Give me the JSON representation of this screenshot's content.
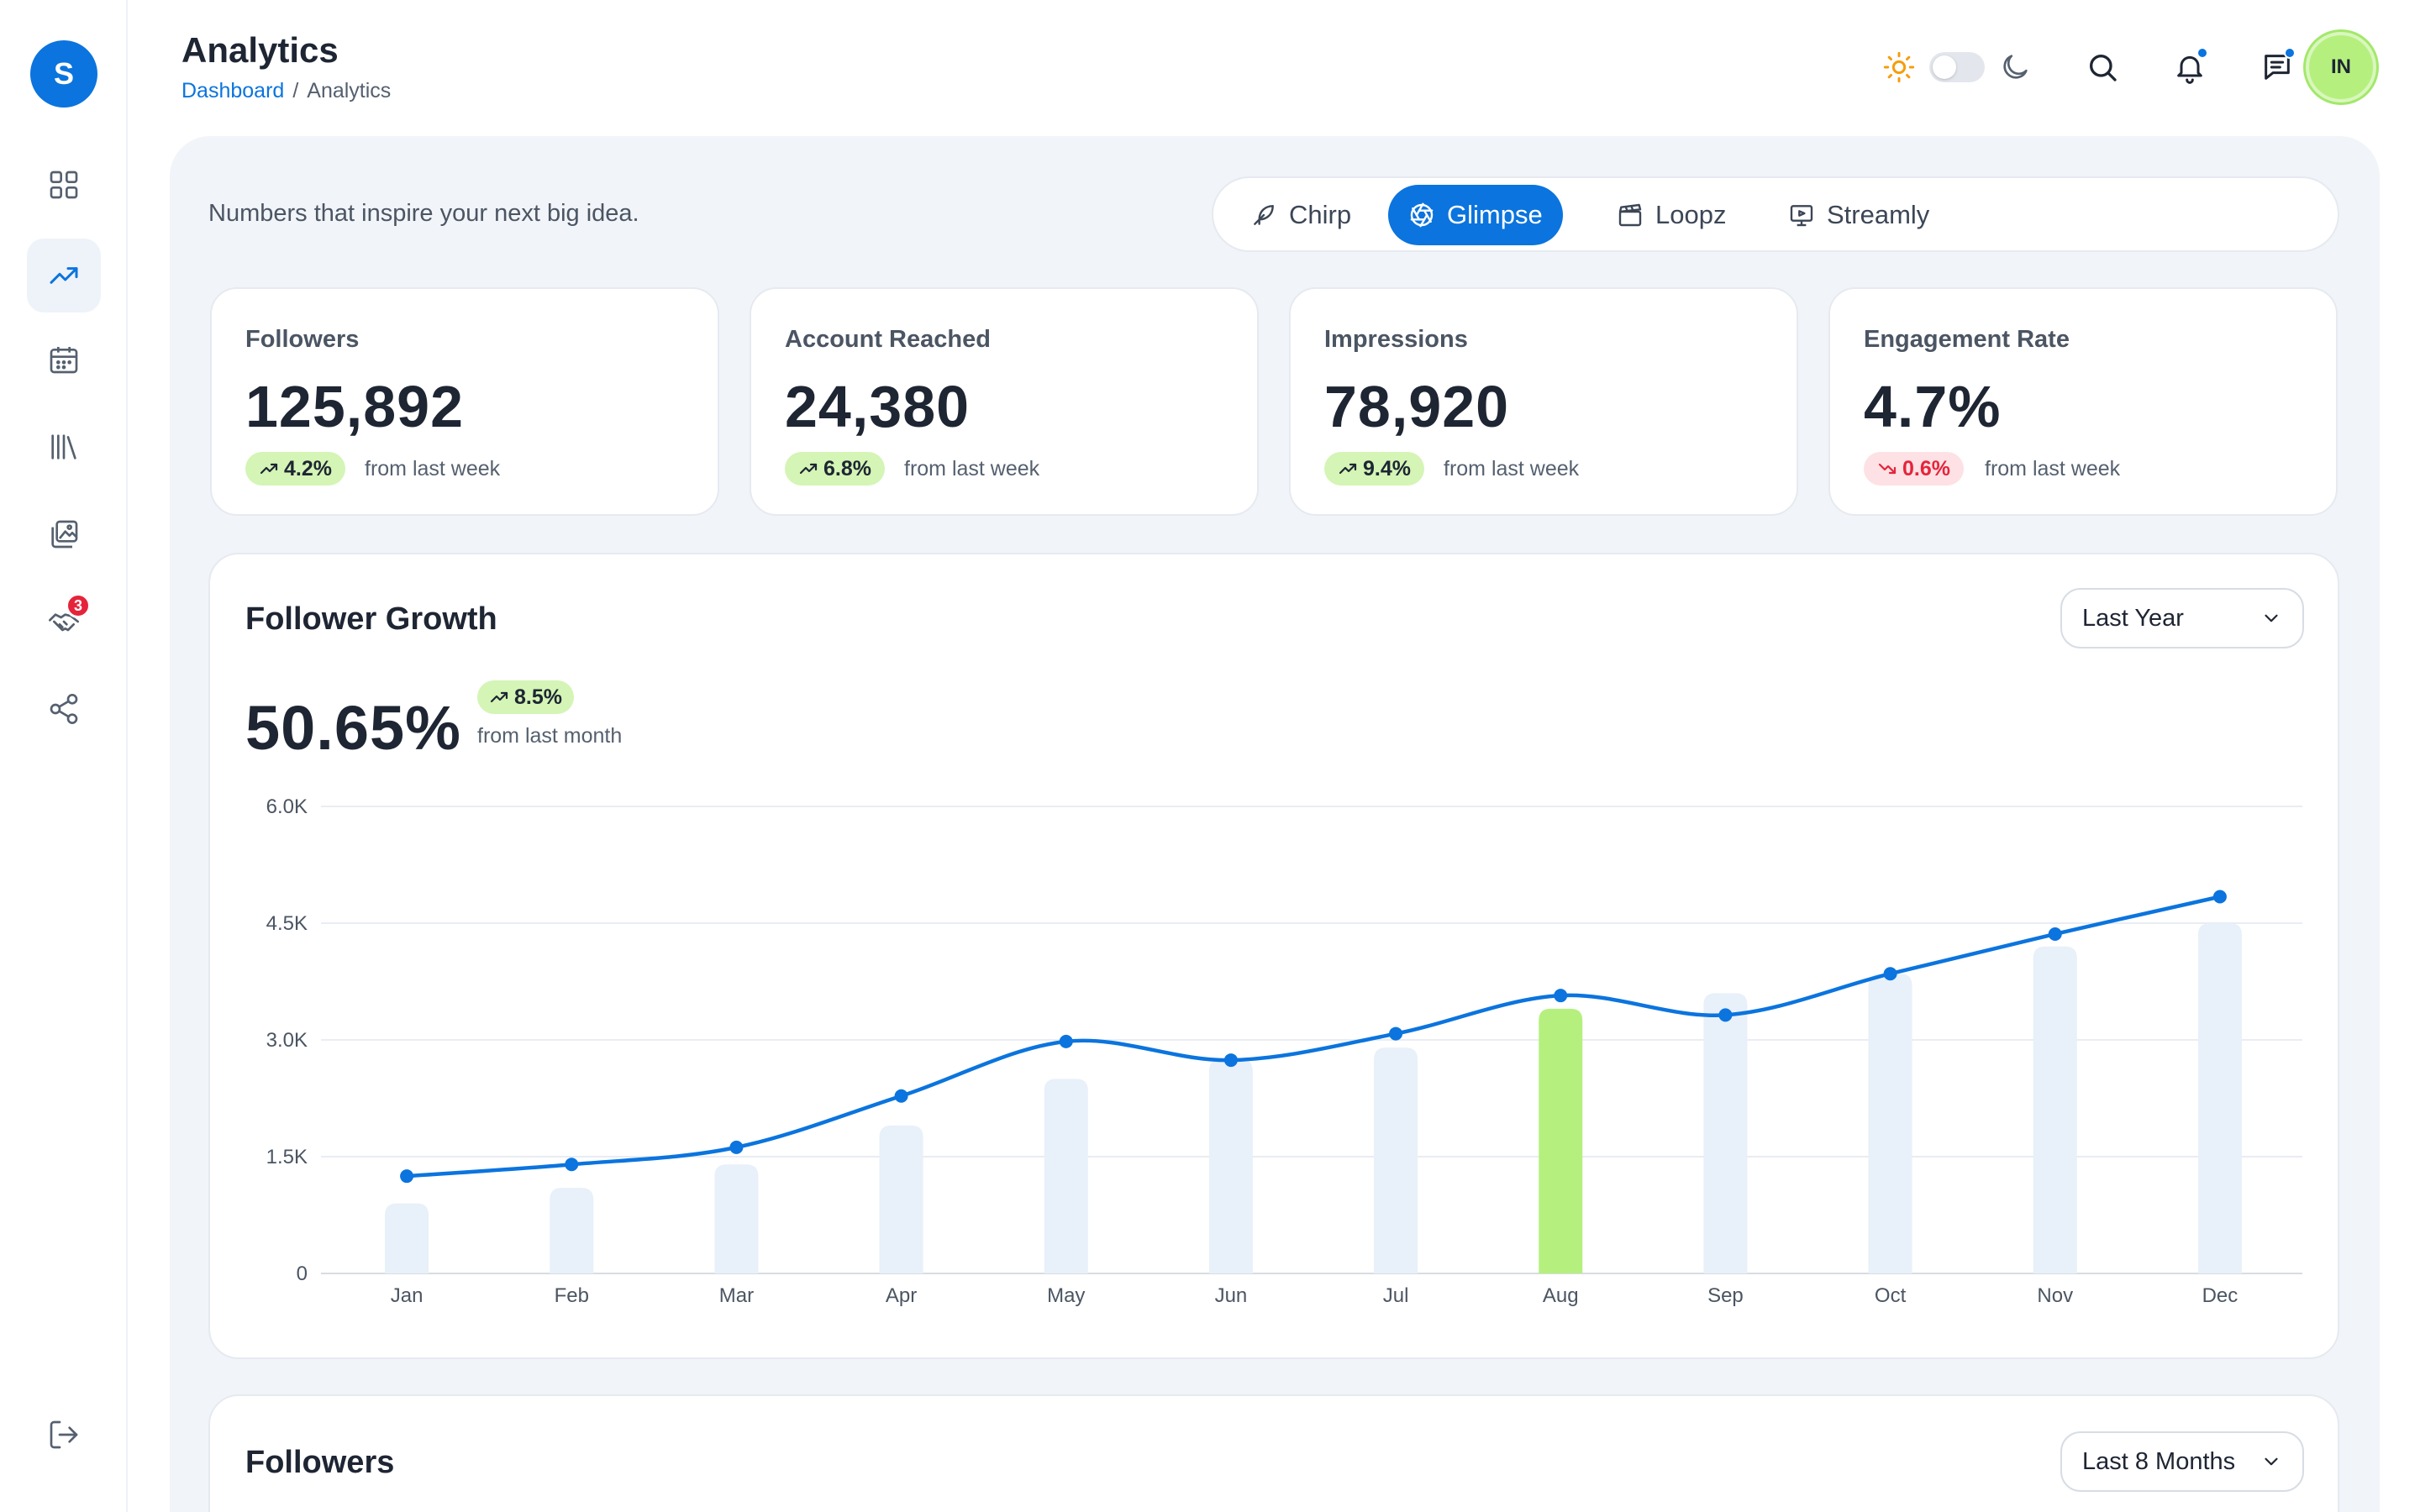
{
  "app": {
    "logo_letter": "S"
  },
  "header": {
    "title": "Analytics",
    "breadcrumb": {
      "link": "Dashboard",
      "separator": "/",
      "current": "Analytics"
    },
    "avatar_initials": "IN"
  },
  "sidebar": {
    "items": [
      {
        "icon": "grid-icon",
        "active": false
      },
      {
        "icon": "trending-up-icon",
        "active": true
      },
      {
        "icon": "calendar-icon",
        "active": false
      },
      {
        "icon": "library-icon",
        "active": false
      },
      {
        "icon": "gallery-icon",
        "active": false
      },
      {
        "icon": "handshake-icon",
        "active": false,
        "badge": "3"
      },
      {
        "icon": "share-icon",
        "active": false
      }
    ],
    "logout_icon": "logout-icon"
  },
  "main": {
    "tagline": "Numbers that inspire your next big idea.",
    "tabs": [
      {
        "label": "Chirp",
        "icon": "feather-icon",
        "active": false
      },
      {
        "label": "Glimpse",
        "icon": "aperture-icon",
        "active": true
      },
      {
        "label": "Loopz",
        "icon": "clapperboard-icon",
        "active": false
      },
      {
        "label": "Streamly",
        "icon": "monitor-play-icon",
        "active": false
      }
    ]
  },
  "stats": [
    {
      "label": "Followers",
      "value": "125,892",
      "change": "4.2%",
      "direction": "up",
      "note": "from last week"
    },
    {
      "label": "Account Reached",
      "value": "24,380",
      "change": "6.8%",
      "direction": "up",
      "note": "from last week"
    },
    {
      "label": "Impressions",
      "value": "78,920",
      "change": "9.4%",
      "direction": "up",
      "note": "from last week"
    },
    {
      "label": "Engagement Rate",
      "value": "4.7%",
      "change": "0.6%",
      "direction": "down",
      "note": "from last week"
    }
  ],
  "growth": {
    "title": "Follower Growth",
    "range": "Last Year",
    "value": "50.65%",
    "change": "8.5%",
    "note": "from last month"
  },
  "followers": {
    "title": "Followers",
    "range": "Last 8 Months"
  },
  "colors": {
    "accent": "#0b74de",
    "bar": "#e8f0f9",
    "bar_highlight": "#b5f07f",
    "up_bg": "#d4f5b5",
    "down_bg": "#fde1e4",
    "down_text": "#e5243b"
  },
  "chart_data": {
    "type": "bar",
    "categories": [
      "Jan",
      "Feb",
      "Mar",
      "Apr",
      "May",
      "Jun",
      "Jul",
      "Aug",
      "Sep",
      "Oct",
      "Nov",
      "Dec"
    ],
    "series": [
      {
        "type": "bar",
        "values": [
          900,
          1100,
          1400,
          1900,
          2500,
          2750,
          2900,
          3400,
          3600,
          3850,
          4200,
          4500
        ],
        "highlight_index": 7
      },
      {
        "type": "line",
        "values": [
          1250,
          1400,
          1620,
          2280,
          2980,
          2740,
          3080,
          3570,
          3320,
          3850,
          4360,
          4840
        ]
      }
    ],
    "yticks": [
      "0",
      "1.5K",
      "3.0K",
      "4.5K",
      "6.0K"
    ],
    "ylim": [
      0,
      6000
    ],
    "grid": true
  }
}
